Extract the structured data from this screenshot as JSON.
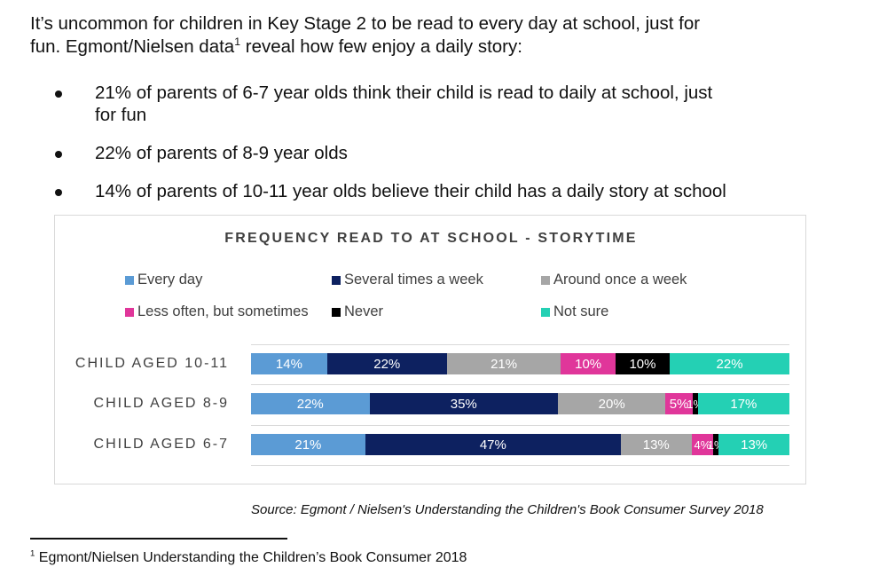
{
  "intro": {
    "line1": "It’s uncommon for children in Key Stage 2 to be read to every day at school, just for",
    "line2a": "fun. Egmont/Nielsen data",
    "line2_sup": "1",
    "line2b": " reveal how few enjoy a daily story:"
  },
  "bullets": [
    {
      "text": "21% of parents of 6-7 year olds think their child is read to daily at school, just",
      "text2": "for fun"
    },
    {
      "text": "22% of parents of 8-9 year olds"
    },
    {
      "text": "14% of parents of 10-11 year olds believe their child has a daily story at school"
    }
  ],
  "chart_data": {
    "type": "bar",
    "orientation": "horizontal-stacked-100",
    "title": "FREQUENCY READ TO AT SCHOOL - STORYTIME",
    "categories": [
      "CHILD AGED 10-11",
      "CHILD AGED 8-9",
      "CHILD AGED 6-7"
    ],
    "series": [
      {
        "name": "Every day",
        "color": "#5b9bd5",
        "values": [
          14,
          22,
          21
        ],
        "labels": [
          "14%",
          "22%",
          "21%"
        ]
      },
      {
        "name": "Several times a week",
        "color": "#0d2160",
        "values": [
          22,
          35,
          47
        ],
        "labels": [
          "22%",
          "35%",
          "47%"
        ]
      },
      {
        "name": "Around once a week",
        "color": "#a6a6a6",
        "values": [
          21,
          20,
          13
        ],
        "labels": [
          "21%",
          "20%",
          "13%"
        ]
      },
      {
        "name": "Less often, but sometimes",
        "color": "#e0369a",
        "values": [
          10,
          5,
          4
        ],
        "labels": [
          "10%",
          "5%",
          "4%"
        ]
      },
      {
        "name": "Never",
        "color": "#000000",
        "values": [
          10,
          1,
          1
        ],
        "labels": [
          "10%",
          "1%",
          "1%"
        ]
      },
      {
        "name": "Not sure",
        "color": "#24d0b4",
        "values": [
          22,
          17,
          13
        ],
        "labels": [
          "22%",
          "17%",
          "13%"
        ]
      }
    ],
    "xlim": [
      0,
      100
    ],
    "legend": "top",
    "grid": true
  },
  "source": "Source:  Egmont / Nielsen's Understanding the Children's Book Consumer Survey 2018",
  "footnote": {
    "sup": "1",
    "text": " Egmont/Nielsen Understanding the Children’s Book Consumer 2018"
  }
}
